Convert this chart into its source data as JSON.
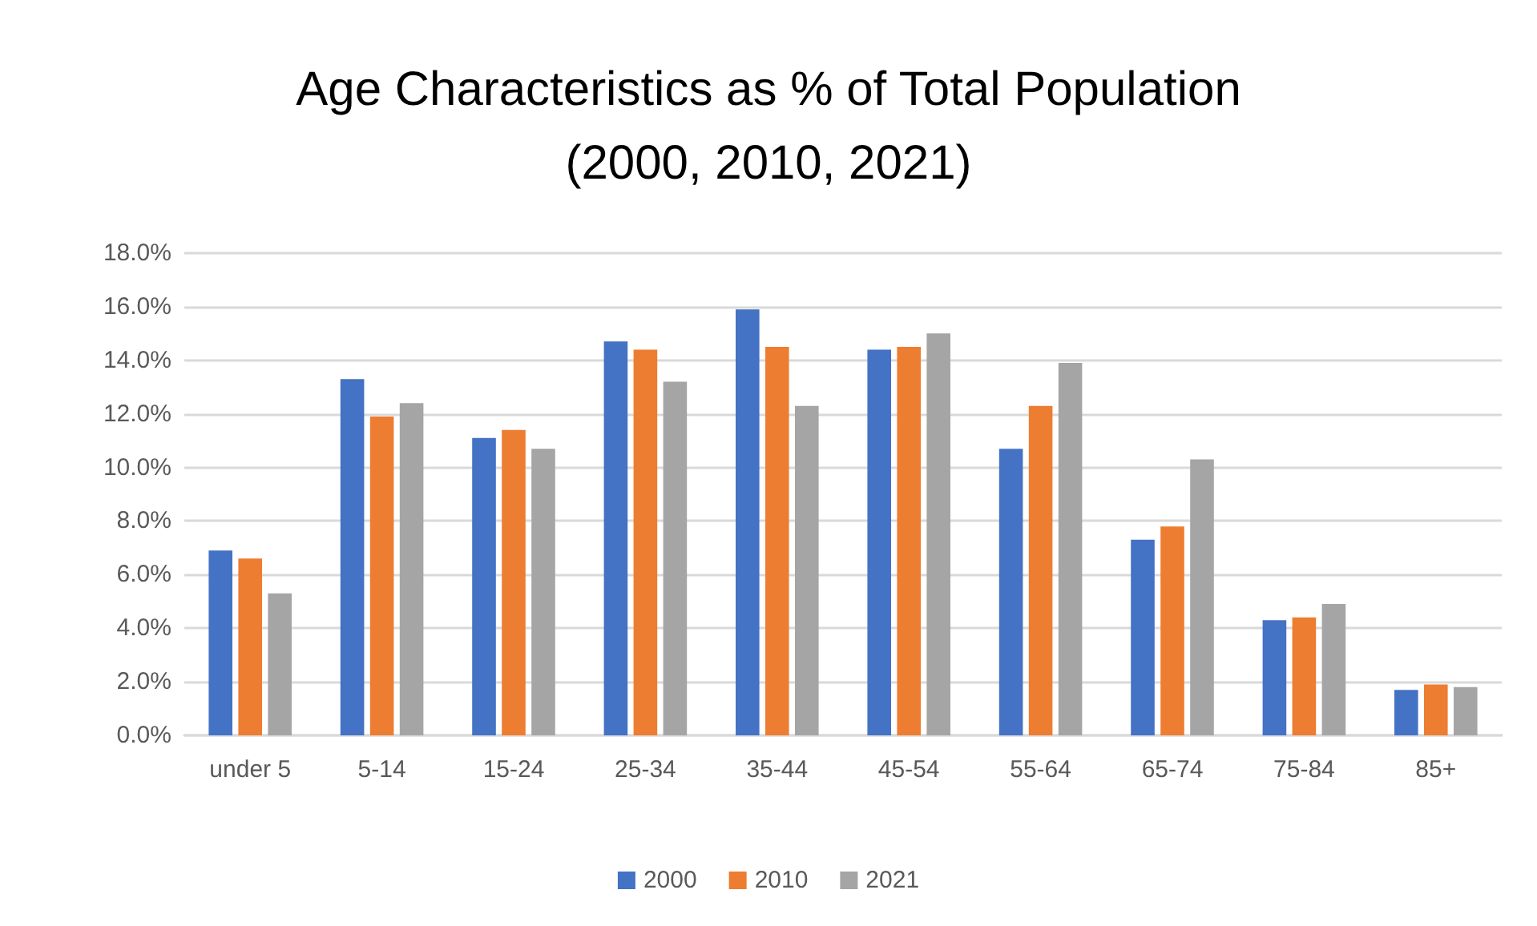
{
  "chart_data": {
    "type": "bar",
    "title": "Age Characteristics as % of Total Population\n(2000, 2010, 2021)",
    "categories": [
      "under 5",
      "5-14",
      "15-24",
      "25-34",
      "35-44",
      "45-54",
      "55-64",
      "65-74",
      "75-84",
      "85+"
    ],
    "series": [
      {
        "name": "2000",
        "color": "#4472c4",
        "values": [
          6.9,
          13.3,
          11.1,
          14.7,
          15.9,
          14.4,
          10.7,
          7.3,
          4.3,
          1.7
        ]
      },
      {
        "name": "2010",
        "color": "#ed7d31",
        "values": [
          6.6,
          11.9,
          11.4,
          14.4,
          14.5,
          14.5,
          12.3,
          7.8,
          4.4,
          1.9
        ]
      },
      {
        "name": "2021",
        "color": "#a5a5a5",
        "values": [
          5.3,
          12.4,
          10.7,
          13.2,
          12.3,
          15.0,
          13.9,
          10.3,
          4.9,
          1.8
        ]
      }
    ],
    "ylim": [
      0,
      18
    ],
    "yticks": [
      {
        "value": 0,
        "label": "0.0%"
      },
      {
        "value": 2,
        "label": "2.0%"
      },
      {
        "value": 4,
        "label": "4.0%"
      },
      {
        "value": 6,
        "label": "6.0%"
      },
      {
        "value": 8,
        "label": "8.0%"
      },
      {
        "value": 10,
        "label": "10.0%"
      },
      {
        "value": 12,
        "label": "12.0%"
      },
      {
        "value": 14,
        "label": "14.0%"
      },
      {
        "value": 16,
        "label": "16.0%"
      },
      {
        "value": 18,
        "label": "18.0%"
      }
    ],
    "grid": "y",
    "legend": "bottom"
  }
}
